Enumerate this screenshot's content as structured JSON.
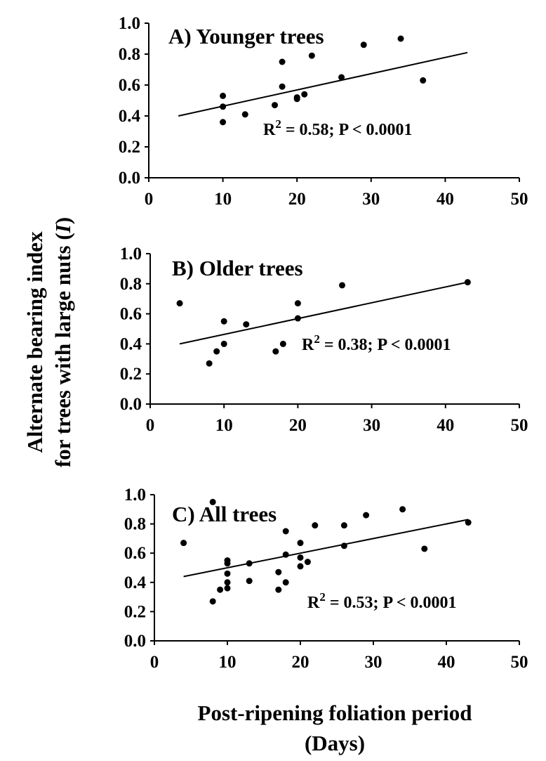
{
  "figure": {
    "y_axis_title_lines": [
      "Alternate bearing index",
      "for trees with large nuts ("
    ],
    "y_axis_title_symbol": "I",
    "y_axis_title_close": ")",
    "x_axis_title_lines": [
      "Post-ripening foliation period",
      "(Days)"
    ]
  },
  "chart_data": [
    {
      "type": "scatter",
      "title": "A) Younger trees",
      "stat_prefix": "R",
      "stat_exp": "2",
      "stat_rest": " = 0.58; P < 0.0001",
      "xlim": [
        0,
        50
      ],
      "ylim": [
        0,
        1
      ],
      "x_ticks": [
        "0",
        "10",
        "20",
        "30",
        "40",
        "50"
      ],
      "y_ticks": [
        "0.0",
        "0.2",
        "0.4",
        "0.6",
        "0.8",
        "1.0"
      ],
      "grid": false,
      "points": [
        {
          "x": 10,
          "y": 0.53
        },
        {
          "x": 10,
          "y": 0.46
        },
        {
          "x": 10,
          "y": 0.36
        },
        {
          "x": 13,
          "y": 0.41
        },
        {
          "x": 17,
          "y": 0.47
        },
        {
          "x": 18,
          "y": 0.75
        },
        {
          "x": 18,
          "y": 0.59
        },
        {
          "x": 20,
          "y": 0.51
        },
        {
          "x": 20,
          "y": 0.52
        },
        {
          "x": 21,
          "y": 0.54
        },
        {
          "x": 22,
          "y": 0.79
        },
        {
          "x": 26,
          "y": 0.65
        },
        {
          "x": 29,
          "y": 0.86
        },
        {
          "x": 34,
          "y": 0.9
        },
        {
          "x": 37,
          "y": 0.63
        }
      ],
      "trendline": {
        "x": [
          4,
          43
        ],
        "y": [
          0.4,
          0.81
        ]
      }
    },
    {
      "type": "scatter",
      "title": "B) Older trees",
      "stat_prefix": "R",
      "stat_exp": "2",
      "stat_rest": " = 0.38;  P < 0.0001",
      "xlim": [
        0,
        50
      ],
      "ylim": [
        0,
        1
      ],
      "x_ticks": [
        "0",
        "10",
        "20",
        "30",
        "40",
        "50"
      ],
      "y_ticks": [
        "0.0",
        "0.2",
        "0.4",
        "0.6",
        "0.8",
        "1.0"
      ],
      "grid": false,
      "points": [
        {
          "x": 4,
          "y": 0.67
        },
        {
          "x": 8,
          "y": 0.27
        },
        {
          "x": 9,
          "y": 0.35
        },
        {
          "x": 10,
          "y": 0.55
        },
        {
          "x": 10,
          "y": 0.4
        },
        {
          "x": 13,
          "y": 0.53
        },
        {
          "x": 17,
          "y": 0.35
        },
        {
          "x": 18,
          "y": 0.4
        },
        {
          "x": 20,
          "y": 0.67
        },
        {
          "x": 20,
          "y": 0.57
        },
        {
          "x": 26,
          "y": 0.79
        },
        {
          "x": 43,
          "y": 0.81
        }
      ],
      "trendline": {
        "x": [
          4,
          43
        ],
        "y": [
          0.4,
          0.81
        ]
      }
    },
    {
      "type": "scatter",
      "title": "C) All trees",
      "stat_prefix": "R",
      "stat_exp": "2",
      "stat_rest": " = 0.53; P < 0.0001",
      "xlim": [
        0,
        50
      ],
      "ylim": [
        0,
        1
      ],
      "x_ticks": [
        "0",
        "10",
        "20",
        "30",
        "40",
        "50"
      ],
      "y_ticks": [
        "0.0",
        "0.2",
        "0.4",
        "0.6",
        "0.8",
        "1.0"
      ],
      "grid": false,
      "points": [
        {
          "x": 4,
          "y": 0.67
        },
        {
          "x": 8,
          "y": 0.95
        },
        {
          "x": 8,
          "y": 0.27
        },
        {
          "x": 9,
          "y": 0.35
        },
        {
          "x": 10,
          "y": 0.55
        },
        {
          "x": 10,
          "y": 0.53
        },
        {
          "x": 10,
          "y": 0.46
        },
        {
          "x": 10,
          "y": 0.4
        },
        {
          "x": 10,
          "y": 0.36
        },
        {
          "x": 13,
          "y": 0.53
        },
        {
          "x": 13,
          "y": 0.41
        },
        {
          "x": 17,
          "y": 0.47
        },
        {
          "x": 17,
          "y": 0.35
        },
        {
          "x": 18,
          "y": 0.75
        },
        {
          "x": 18,
          "y": 0.59
        },
        {
          "x": 18,
          "y": 0.4
        },
        {
          "x": 20,
          "y": 0.67
        },
        {
          "x": 20,
          "y": 0.57
        },
        {
          "x": 20,
          "y": 0.51
        },
        {
          "x": 21,
          "y": 0.54
        },
        {
          "x": 22,
          "y": 0.79
        },
        {
          "x": 26,
          "y": 0.79
        },
        {
          "x": 26,
          "y": 0.65
        },
        {
          "x": 29,
          "y": 0.86
        },
        {
          "x": 34,
          "y": 0.9
        },
        {
          "x": 37,
          "y": 0.63
        },
        {
          "x": 43,
          "y": 0.81
        }
      ],
      "trendline": {
        "x": [
          4,
          43
        ],
        "y": [
          0.44,
          0.83
        ]
      }
    }
  ]
}
